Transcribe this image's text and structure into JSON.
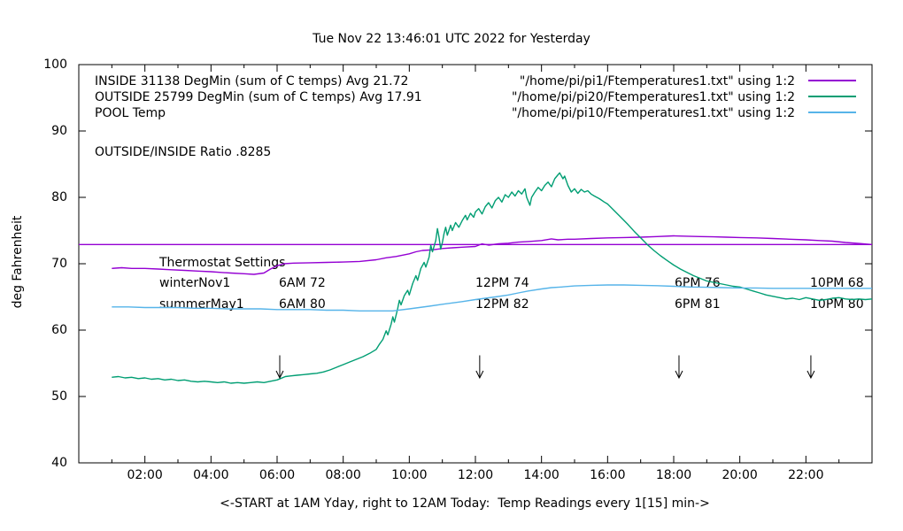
{
  "title": "Tue Nov 22 13:46:01 UTC 2022 for Yesterday",
  "y_axis_label": "deg Fahrenheit",
  "x_axis_label": "<-START at 1AM Yday, right to 12AM Today:  Temp Readings every 1[15] min->",
  "legend": {
    "rows": [
      {
        "label": "INSIDE 31138 DegMin (sum of C temps) Avg 21.72",
        "file": "\"/home/pi/pi1/Ftemperatures1.txt\" using 1:2",
        "color": "#9400D3"
      },
      {
        "label": "OUTSIDE 25799 DegMin (sum of C temps) Avg 17.91",
        "file": "\"/home/pi/pi20/Ftemperatures1.txt\" using 1:2",
        "color": "#009E73"
      },
      {
        "label": "POOL Temp",
        "file": "\"/home/pi/pi10/Ftemperatures1.txt\" using 1:2",
        "color": "#56B4E9"
      }
    ],
    "ratio_note": "OUTSIDE/INSIDE Ratio .8285"
  },
  "thermostat": {
    "heading": "Thermostat Settings",
    "rows": [
      {
        "name": "winterNov1",
        "c1": "6AM 72",
        "c2": "12PM 74",
        "c3": "6PM 76",
        "c4": "10PM 68"
      },
      {
        "name": "summerMay1",
        "c1": "6AM 80",
        "c2": "12PM 82",
        "c3": "6PM 81",
        "c4": "10PM 80"
      }
    ]
  },
  "chart_data": {
    "type": "line",
    "title": "Tue Nov 22 13:46:01 UTC 2022 for Yesterday",
    "xlabel": "<-START at 1AM Yday, right to 12AM Today:  Temp Readings every 1[15] min->",
    "ylabel": "deg Fahrenheit",
    "xlim": [
      0,
      24
    ],
    "ylim": [
      40,
      100
    ],
    "grid": false,
    "legend_position": "top",
    "x_ticks": [
      {
        "hour": 2,
        "label": "02:00"
      },
      {
        "hour": 4,
        "label": "04:00"
      },
      {
        "hour": 6,
        "label": "06:00"
      },
      {
        "hour": 8,
        "label": "08:00"
      },
      {
        "hour": 10,
        "label": "10:00"
      },
      {
        "hour": 12,
        "label": "12:00"
      },
      {
        "hour": 14,
        "label": "14:00"
      },
      {
        "hour": 16,
        "label": "16:00"
      },
      {
        "hour": 18,
        "label": "18:00"
      },
      {
        "hour": 20,
        "label": "20:00"
      },
      {
        "hour": 22,
        "label": "22:00"
      }
    ],
    "x_minor_hours": [
      1,
      3,
      5,
      7,
      9,
      11,
      13,
      15,
      17,
      19,
      21,
      23
    ],
    "y_ticks": [
      40,
      50,
      60,
      70,
      80,
      90,
      100
    ],
    "arrows": [
      {
        "x": 6.08,
        "y_from": 56.2,
        "y_to": 52.8
      },
      {
        "x": 12.13,
        "y_from": 56.2,
        "y_to": 52.8
      },
      {
        "x": 18.16,
        "y_from": 56.2,
        "y_to": 52.8
      },
      {
        "x": 22.15,
        "y_from": 56.2,
        "y_to": 52.8
      }
    ],
    "series": [
      {
        "name": "INSIDE",
        "color": "#9400D3",
        "points": [
          [
            1,
            69.3
          ],
          [
            1.3,
            69.4
          ],
          [
            1.6,
            69.3
          ],
          [
            2,
            69.3
          ],
          [
            2.4,
            69.2
          ],
          [
            2.8,
            69.1
          ],
          [
            3.2,
            69.0
          ],
          [
            3.6,
            68.9
          ],
          [
            4,
            68.8
          ],
          [
            4.3,
            68.7
          ],
          [
            4.6,
            68.6
          ],
          [
            5,
            68.5
          ],
          [
            5.3,
            68.4
          ],
          [
            5.6,
            68.6
          ],
          [
            5.8,
            69.2
          ],
          [
            6,
            69.7
          ],
          [
            6.2,
            70.0
          ],
          [
            6.5,
            70.1
          ],
          [
            7,
            70.15
          ],
          [
            7.5,
            70.2
          ],
          [
            8,
            70.25
          ],
          [
            8.5,
            70.35
          ],
          [
            9,
            70.6
          ],
          [
            9.3,
            70.9
          ],
          [
            9.6,
            71.1
          ],
          [
            10,
            71.5
          ],
          [
            10.2,
            71.8
          ],
          [
            10.4,
            72.0
          ],
          [
            10.7,
            72.1
          ],
          [
            11,
            72.3
          ],
          [
            11.3,
            72.4
          ],
          [
            11.6,
            72.5
          ],
          [
            12,
            72.6
          ],
          [
            12.2,
            73.0
          ],
          [
            12.4,
            72.8
          ],
          [
            12.7,
            73.0
          ],
          [
            13,
            73.1
          ],
          [
            13.3,
            73.25
          ],
          [
            13.6,
            73.35
          ],
          [
            14,
            73.5
          ],
          [
            14.3,
            73.75
          ],
          [
            14.5,
            73.6
          ],
          [
            14.8,
            73.7
          ],
          [
            15,
            73.7
          ],
          [
            15.5,
            73.8
          ],
          [
            16,
            73.9
          ],
          [
            16.5,
            73.95
          ],
          [
            17,
            74.0
          ],
          [
            17.5,
            74.1
          ],
          [
            18,
            74.2
          ],
          [
            18.4,
            74.15
          ],
          [
            18.8,
            74.1
          ],
          [
            19.2,
            74.05
          ],
          [
            19.6,
            74.0
          ],
          [
            20,
            73.95
          ],
          [
            20.5,
            73.9
          ],
          [
            21,
            73.8
          ],
          [
            21.5,
            73.7
          ],
          [
            22,
            73.6
          ],
          [
            22.4,
            73.5
          ],
          [
            22.8,
            73.4
          ],
          [
            23.2,
            73.2
          ],
          [
            23.6,
            73.05
          ],
          [
            24,
            72.9
          ]
        ]
      },
      {
        "name": "INSIDE-flat-reference",
        "color": "#9400D3",
        "points": [
          [
            0,
            72.9
          ],
          [
            24,
            72.9
          ]
        ]
      },
      {
        "name": "OUTSIDE",
        "color": "#009E73",
        "points": [
          [
            1,
            52.9
          ],
          [
            1.2,
            53.0
          ],
          [
            1.4,
            52.8
          ],
          [
            1.6,
            52.9
          ],
          [
            1.8,
            52.7
          ],
          [
            2,
            52.8
          ],
          [
            2.2,
            52.6
          ],
          [
            2.4,
            52.7
          ],
          [
            2.6,
            52.5
          ],
          [
            2.8,
            52.6
          ],
          [
            3,
            52.4
          ],
          [
            3.2,
            52.5
          ],
          [
            3.4,
            52.3
          ],
          [
            3.6,
            52.2
          ],
          [
            3.8,
            52.3
          ],
          [
            4,
            52.2
          ],
          [
            4.2,
            52.1
          ],
          [
            4.4,
            52.2
          ],
          [
            4.6,
            52.0
          ],
          [
            4.8,
            52.1
          ],
          [
            5,
            52.0
          ],
          [
            5.2,
            52.1
          ],
          [
            5.4,
            52.2
          ],
          [
            5.6,
            52.1
          ],
          [
            5.8,
            52.3
          ],
          [
            6,
            52.5
          ],
          [
            6.1,
            52.7
          ],
          [
            6.25,
            53.0
          ],
          [
            6.4,
            53.1
          ],
          [
            6.6,
            53.2
          ],
          [
            6.8,
            53.3
          ],
          [
            7,
            53.4
          ],
          [
            7.2,
            53.5
          ],
          [
            7.4,
            53.7
          ],
          [
            7.6,
            54.0
          ],
          [
            7.8,
            54.4
          ],
          [
            8,
            54.8
          ],
          [
            8.2,
            55.2
          ],
          [
            8.4,
            55.6
          ],
          [
            8.6,
            56.0
          ],
          [
            8.8,
            56.5
          ],
          [
            9,
            57.1
          ],
          [
            9.1,
            57.9
          ],
          [
            9.2,
            58.6
          ],
          [
            9.3,
            59.9
          ],
          [
            9.35,
            59.3
          ],
          [
            9.45,
            60.9
          ],
          [
            9.5,
            62.0
          ],
          [
            9.55,
            61.2
          ],
          [
            9.65,
            63.3
          ],
          [
            9.7,
            64.5
          ],
          [
            9.75,
            63.8
          ],
          [
            9.85,
            65.2
          ],
          [
            9.95,
            66.0
          ],
          [
            10,
            65.3
          ],
          [
            10.1,
            67.0
          ],
          [
            10.2,
            68.2
          ],
          [
            10.25,
            67.5
          ],
          [
            10.35,
            69.3
          ],
          [
            10.45,
            70.2
          ],
          [
            10.5,
            69.5
          ],
          [
            10.6,
            71.0
          ],
          [
            10.65,
            72.8
          ],
          [
            10.7,
            71.8
          ],
          [
            10.8,
            73.5
          ],
          [
            10.85,
            75.3
          ],
          [
            10.9,
            74.0
          ],
          [
            10.95,
            72.2
          ],
          [
            11,
            73.2
          ],
          [
            11.05,
            74.5
          ],
          [
            11.1,
            75.5
          ],
          [
            11.15,
            74.3
          ],
          [
            11.25,
            75.8
          ],
          [
            11.3,
            75.0
          ],
          [
            11.4,
            76.2
          ],
          [
            11.5,
            75.5
          ],
          [
            11.6,
            76.5
          ],
          [
            11.7,
            77.3
          ],
          [
            11.75,
            76.6
          ],
          [
            11.85,
            77.6
          ],
          [
            11.95,
            77.0
          ],
          [
            12,
            77.8
          ],
          [
            12.1,
            78.3
          ],
          [
            12.2,
            77.5
          ],
          [
            12.3,
            78.6
          ],
          [
            12.4,
            79.2
          ],
          [
            12.5,
            78.4
          ],
          [
            12.6,
            79.5
          ],
          [
            12.7,
            80.0
          ],
          [
            12.8,
            79.3
          ],
          [
            12.9,
            80.4
          ],
          [
            13,
            80.0
          ],
          [
            13.1,
            80.8
          ],
          [
            13.2,
            80.2
          ],
          [
            13.3,
            81.0
          ],
          [
            13.4,
            80.5
          ],
          [
            13.5,
            81.3
          ],
          [
            13.55,
            80.0
          ],
          [
            13.65,
            78.8
          ],
          [
            13.7,
            80.0
          ],
          [
            13.8,
            80.8
          ],
          [
            13.9,
            81.5
          ],
          [
            14,
            81.0
          ],
          [
            14.1,
            81.8
          ],
          [
            14.2,
            82.3
          ],
          [
            14.3,
            81.6
          ],
          [
            14.4,
            82.8
          ],
          [
            14.5,
            83.4
          ],
          [
            14.55,
            83.7
          ],
          [
            14.65,
            82.8
          ],
          [
            14.7,
            83.2
          ],
          [
            14.8,
            81.8
          ],
          [
            14.9,
            80.8
          ],
          [
            15,
            81.3
          ],
          [
            15.1,
            80.6
          ],
          [
            15.2,
            81.2
          ],
          [
            15.3,
            80.8
          ],
          [
            15.4,
            81.0
          ],
          [
            15.5,
            80.5
          ],
          [
            15.6,
            80.2
          ],
          [
            15.75,
            79.8
          ],
          [
            15.9,
            79.3
          ],
          [
            16,
            79.0
          ],
          [
            16.2,
            78.0
          ],
          [
            16.4,
            77.0
          ],
          [
            16.6,
            76.0
          ],
          [
            16.8,
            74.9
          ],
          [
            17,
            73.9
          ],
          [
            17.2,
            72.9
          ],
          [
            17.4,
            72.0
          ],
          [
            17.6,
            71.2
          ],
          [
            17.8,
            70.5
          ],
          [
            18,
            69.8
          ],
          [
            18.2,
            69.2
          ],
          [
            18.4,
            68.7
          ],
          [
            18.6,
            68.2
          ],
          [
            18.8,
            67.8
          ],
          [
            19,
            67.4
          ],
          [
            19.2,
            67.2
          ],
          [
            19.4,
            67.0
          ],
          [
            19.6,
            66.8
          ],
          [
            19.8,
            66.6
          ],
          [
            20,
            66.5
          ],
          [
            20.2,
            66.2
          ],
          [
            20.4,
            65.9
          ],
          [
            20.6,
            65.6
          ],
          [
            20.8,
            65.3
          ],
          [
            21,
            65.1
          ],
          [
            21.2,
            64.9
          ],
          [
            21.4,
            64.7
          ],
          [
            21.6,
            64.8
          ],
          [
            21.8,
            64.6
          ],
          [
            22,
            64.9
          ],
          [
            22.2,
            64.7
          ],
          [
            22.4,
            64.5
          ],
          [
            22.6,
            64.6
          ],
          [
            22.8,
            64.8
          ],
          [
            23,
            64.9
          ],
          [
            23.2,
            64.7
          ],
          [
            23.4,
            64.6
          ],
          [
            23.6,
            64.7
          ],
          [
            23.8,
            64.6
          ],
          [
            24,
            64.7
          ]
        ]
      },
      {
        "name": "POOL",
        "color": "#56B4E9",
        "points": [
          [
            1,
            63.5
          ],
          [
            1.5,
            63.5
          ],
          [
            2,
            63.4
          ],
          [
            2.5,
            63.4
          ],
          [
            3,
            63.4
          ],
          [
            3.5,
            63.3
          ],
          [
            4,
            63.3
          ],
          [
            4.5,
            63.2
          ],
          [
            5,
            63.2
          ],
          [
            5.5,
            63.2
          ],
          [
            6,
            63.1
          ],
          [
            6.5,
            63.1
          ],
          [
            7,
            63.1
          ],
          [
            7.5,
            63.0
          ],
          [
            8,
            63.0
          ],
          [
            8.5,
            62.9
          ],
          [
            9,
            62.9
          ],
          [
            9.5,
            62.9
          ],
          [
            10,
            63.2
          ],
          [
            10.3,
            63.4
          ],
          [
            10.6,
            63.6
          ],
          [
            11,
            63.9
          ],
          [
            11.3,
            64.1
          ],
          [
            11.6,
            64.3
          ],
          [
            12,
            64.6
          ],
          [
            12.3,
            64.8
          ],
          [
            12.6,
            65.0
          ],
          [
            13,
            65.3
          ],
          [
            13.3,
            65.6
          ],
          [
            13.6,
            65.9
          ],
          [
            14,
            66.2
          ],
          [
            14.3,
            66.4
          ],
          [
            14.6,
            66.5
          ],
          [
            15,
            66.65
          ],
          [
            15.5,
            66.75
          ],
          [
            16,
            66.8
          ],
          [
            16.5,
            66.8
          ],
          [
            17,
            66.75
          ],
          [
            17.5,
            66.7
          ],
          [
            18,
            66.6
          ],
          [
            18.5,
            66.5
          ],
          [
            19,
            66.45
          ],
          [
            19.5,
            66.4
          ],
          [
            20,
            66.35
          ],
          [
            20.5,
            66.35
          ],
          [
            21,
            66.3
          ],
          [
            21.5,
            66.3
          ],
          [
            22,
            66.3
          ],
          [
            22.5,
            66.3
          ],
          [
            23,
            66.3
          ],
          [
            23.5,
            66.3
          ],
          [
            24,
            66.3
          ]
        ]
      }
    ]
  }
}
